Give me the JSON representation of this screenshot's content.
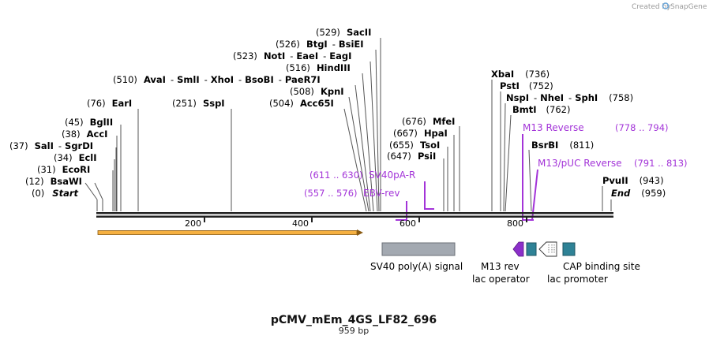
{
  "credit": {
    "created_by": "Created by",
    "app": "SnapGene"
  },
  "title": "pCMV_mEm_4GS_LF82_696",
  "length": "959 bp",
  "axis": {
    "ticks": [
      "200",
      "400",
      "600",
      "800"
    ]
  },
  "enzymes": {
    "start": {
      "pos": "(0)",
      "name": "Start"
    },
    "bsawi": {
      "pos": "(12)",
      "name": "BsaWI"
    },
    "ecori": {
      "pos": "(31)",
      "name": "EcoRI"
    },
    "ecli": {
      "pos": "(34)",
      "name": "EclI"
    },
    "sali": {
      "pos": "(37)",
      "name": "SalI",
      "dash": "-",
      "name2": "SgrDI"
    },
    "acci": {
      "pos": "(38)",
      "name": "AccI"
    },
    "bglii": {
      "pos": "(45)",
      "name": "BglII"
    },
    "eari": {
      "pos": "(76)",
      "name": "EarI"
    },
    "sspi": {
      "pos": "(251)",
      "name": "SspI"
    },
    "acc65i": {
      "pos": "(504)",
      "name": "Acc65I"
    },
    "kpni": {
      "pos": "(508)",
      "name": "KpnI"
    },
    "avai": {
      "pos": "(510)",
      "name": "AvaI",
      "dash": "-",
      "name2": "SmlI",
      "name3": "XhoI",
      "name4": "BsoBI",
      "name5": "PaeR7I"
    },
    "hindiii": {
      "pos": "(516)",
      "name": "HindIII"
    },
    "noti": {
      "pos": "(523)",
      "name": "NotI",
      "dash": "-",
      "name2": "EaeI",
      "name3": "EagI"
    },
    "btgi": {
      "pos": "(526)",
      "name": "BtgI",
      "dash": "-",
      "name2": "BsiEI"
    },
    "sacii": {
      "pos": "(529)",
      "name": "SacII"
    },
    "psii": {
      "pos": "(647)",
      "name": "PsiI"
    },
    "tsoi": {
      "pos": "(655)",
      "name": "TsoI"
    },
    "hpai": {
      "pos": "(667)",
      "name": "HpaI"
    },
    "mfei": {
      "pos": "(676)",
      "name": "MfeI"
    },
    "xbai": {
      "name": "XbaI",
      "pos": "(736)"
    },
    "psti": {
      "name": "PstI",
      "pos": "(752)"
    },
    "nspi": {
      "name": "NspI",
      "dash": "-",
      "name2": "NheI",
      "name3": "SphI",
      "pos": "(758)"
    },
    "bmti": {
      "name": "BmtI",
      "pos": "(762)"
    },
    "bsrbi": {
      "name": "BsrBI",
      "pos": "(811)"
    },
    "pvuii": {
      "name": "PvuII",
      "pos": "(943)"
    },
    "end": {
      "name": "End",
      "pos": "(959)"
    }
  },
  "primers": {
    "sv40pa_r": {
      "range": "(611 .. 630)",
      "name": "SV40pA-R"
    },
    "ebv_rev": {
      "range": "(557 .. 576)",
      "name": "EBV-rev"
    },
    "m13_reverse": {
      "name": "M13 Reverse",
      "range": "(778 .. 794)"
    },
    "m13_puc_reverse": {
      "name": "M13/pUC Reverse",
      "range": "(791 .. 813)"
    }
  },
  "features": {
    "sv40_polya": "SV40 poly(A) signal",
    "m13_rev": "M13 rev",
    "lac_operator": "lac operator",
    "lac_promoter": "lac promoter",
    "cap_site": "CAP binding site"
  },
  "colors": {
    "primer": "#a334d8",
    "orf_fill": "#f5b041",
    "orf_edge": "#8a5a10",
    "sv40": "#a3a9b1",
    "teal": "#2e8296",
    "m13rev": "#8b2fc9"
  }
}
